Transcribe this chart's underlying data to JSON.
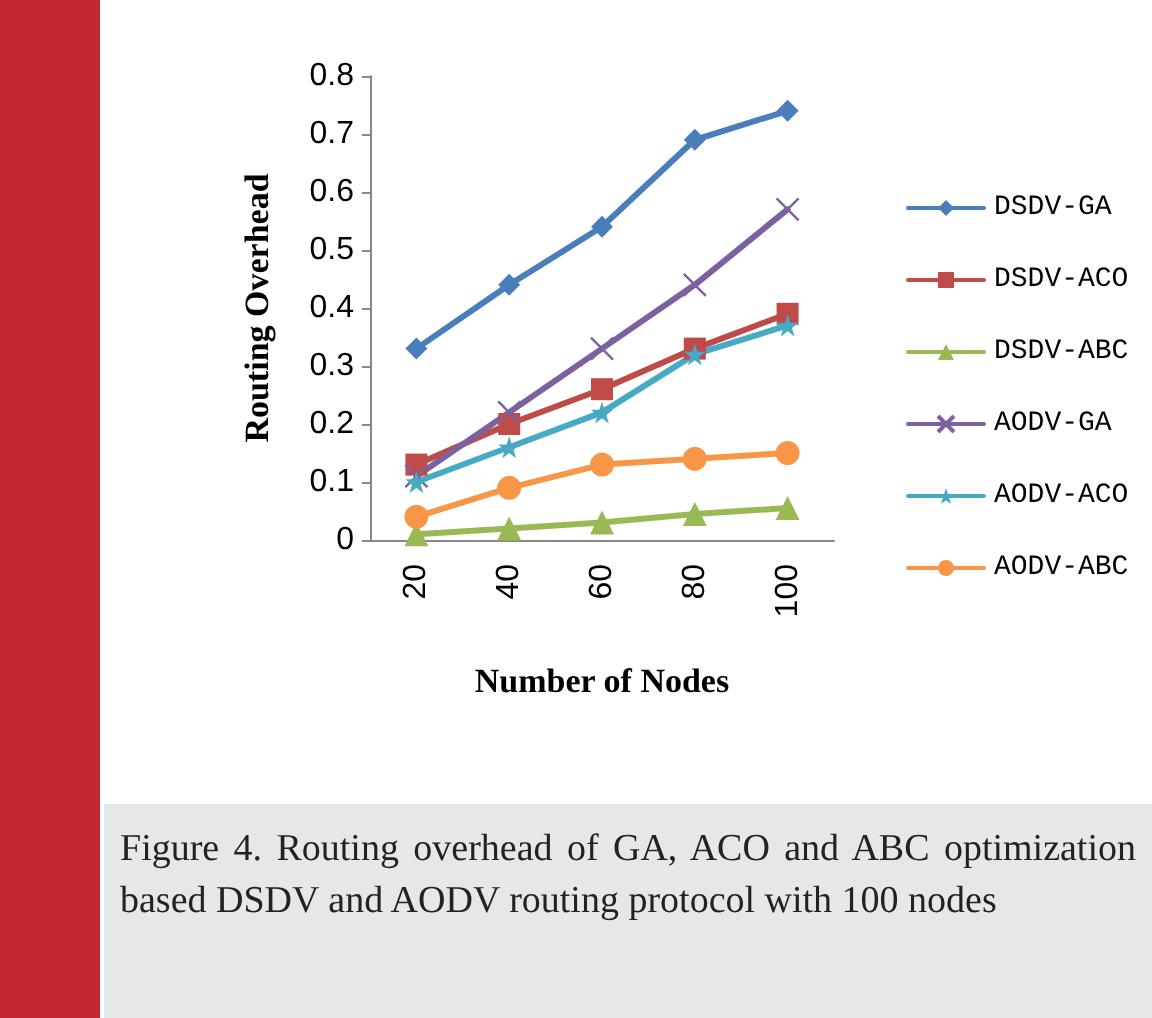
{
  "chart_data": {
    "type": "line",
    "xlabel": "Number of Nodes",
    "ylabel": "Routing Overhead",
    "categories": [
      "20",
      "40",
      "60",
      "80",
      "100"
    ],
    "series": [
      {
        "name": "DSDV-GA",
        "color": "#4a7ebb",
        "marker": "diamond",
        "values": [
          0.33,
          0.44,
          0.54,
          0.69,
          0.74
        ]
      },
      {
        "name": "DSDV-ACO",
        "color": "#be4b48",
        "marker": "square",
        "values": [
          0.13,
          0.2,
          0.26,
          0.33,
          0.39
        ]
      },
      {
        "name": "DSDV-ABC",
        "color": "#98b954",
        "marker": "triangle",
        "values": [
          0.01,
          0.02,
          0.03,
          0.045,
          0.055
        ]
      },
      {
        "name": "AODV-GA",
        "color": "#7d60a0",
        "marker": "cross",
        "values": [
          0.11,
          0.22,
          0.33,
          0.44,
          0.57
        ]
      },
      {
        "name": "AODV-ACO",
        "color": "#46aac5",
        "marker": "star",
        "values": [
          0.1,
          0.16,
          0.22,
          0.32,
          0.37
        ]
      },
      {
        "name": "AODV-ABC",
        "color": "#f79646",
        "marker": "circle",
        "values": [
          0.04,
          0.09,
          0.13,
          0.14,
          0.15
        ]
      }
    ],
    "ylim": [
      0,
      0.8
    ],
    "yticks": [
      0,
      0.1,
      0.2,
      0.3,
      0.4,
      0.5,
      0.6,
      0.7,
      0.8
    ],
    "grid": false,
    "legend": "right",
    "annotations": [
      "Figure 4. Routing overhead of GA, ACO and ABC optimization based DSDV and AODV routing protocol with 100 nodes"
    ]
  }
}
